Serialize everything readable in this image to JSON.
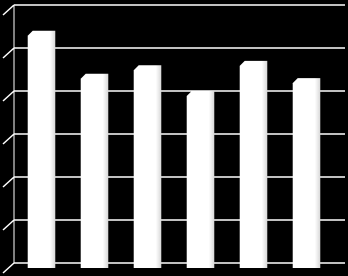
{
  "chart_data": {
    "type": "bar",
    "categories": [
      null,
      null,
      null,
      null,
      null,
      null
    ],
    "values": [
      5.4,
      4.4,
      4.6,
      4.0,
      4.7,
      4.3
    ],
    "color": "#ffffff",
    "ylim": [
      0,
      6
    ],
    "yticks": [
      0,
      1,
      2,
      3,
      4,
      5,
      6
    ],
    "grid": true
  }
}
